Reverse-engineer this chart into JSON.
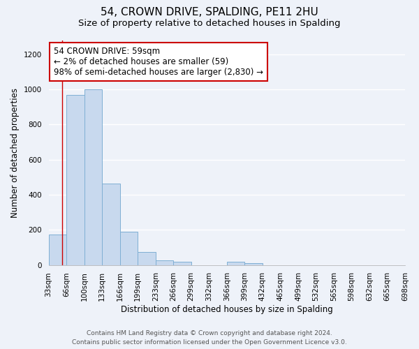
{
  "title": "54, CROWN DRIVE, SPALDING, PE11 2HU",
  "subtitle": "Size of property relative to detached houses in Spalding",
  "xlabel": "Distribution of detached houses by size in Spalding",
  "ylabel": "Number of detached properties",
  "bin_edges": [
    33,
    66,
    100,
    133,
    166,
    199,
    233,
    266,
    299,
    332,
    366,
    399,
    432,
    465,
    499,
    532,
    565,
    598,
    632,
    665,
    698
  ],
  "bar_heights": [
    175,
    970,
    1000,
    465,
    190,
    75,
    25,
    20,
    0,
    0,
    20,
    10,
    0,
    0,
    0,
    0,
    0,
    0,
    0,
    0
  ],
  "bar_color": "#c8d9ee",
  "bar_edge_color": "#7fafd4",
  "property_size": 59,
  "vline_color": "#cc0000",
  "annotation_line1": "54 CROWN DRIVE: 59sqm",
  "annotation_line2": "← 2% of detached houses are smaller (59)",
  "annotation_line3": "98% of semi-detached houses are larger (2,830) →",
  "annotation_box_color": "#ffffff",
  "annotation_box_edge_color": "#cc0000",
  "ylim": [
    0,
    1280
  ],
  "yticks": [
    0,
    200,
    400,
    600,
    800,
    1000,
    1200
  ],
  "footer_line1": "Contains HM Land Registry data © Crown copyright and database right 2024.",
  "footer_line2": "Contains public sector information licensed under the Open Government Licence v3.0.",
  "title_fontsize": 11,
  "subtitle_fontsize": 9.5,
  "axis_label_fontsize": 8.5,
  "tick_fontsize": 7.5,
  "annotation_fontsize": 8.5,
  "footer_fontsize": 6.5,
  "background_color": "#eef2f9"
}
